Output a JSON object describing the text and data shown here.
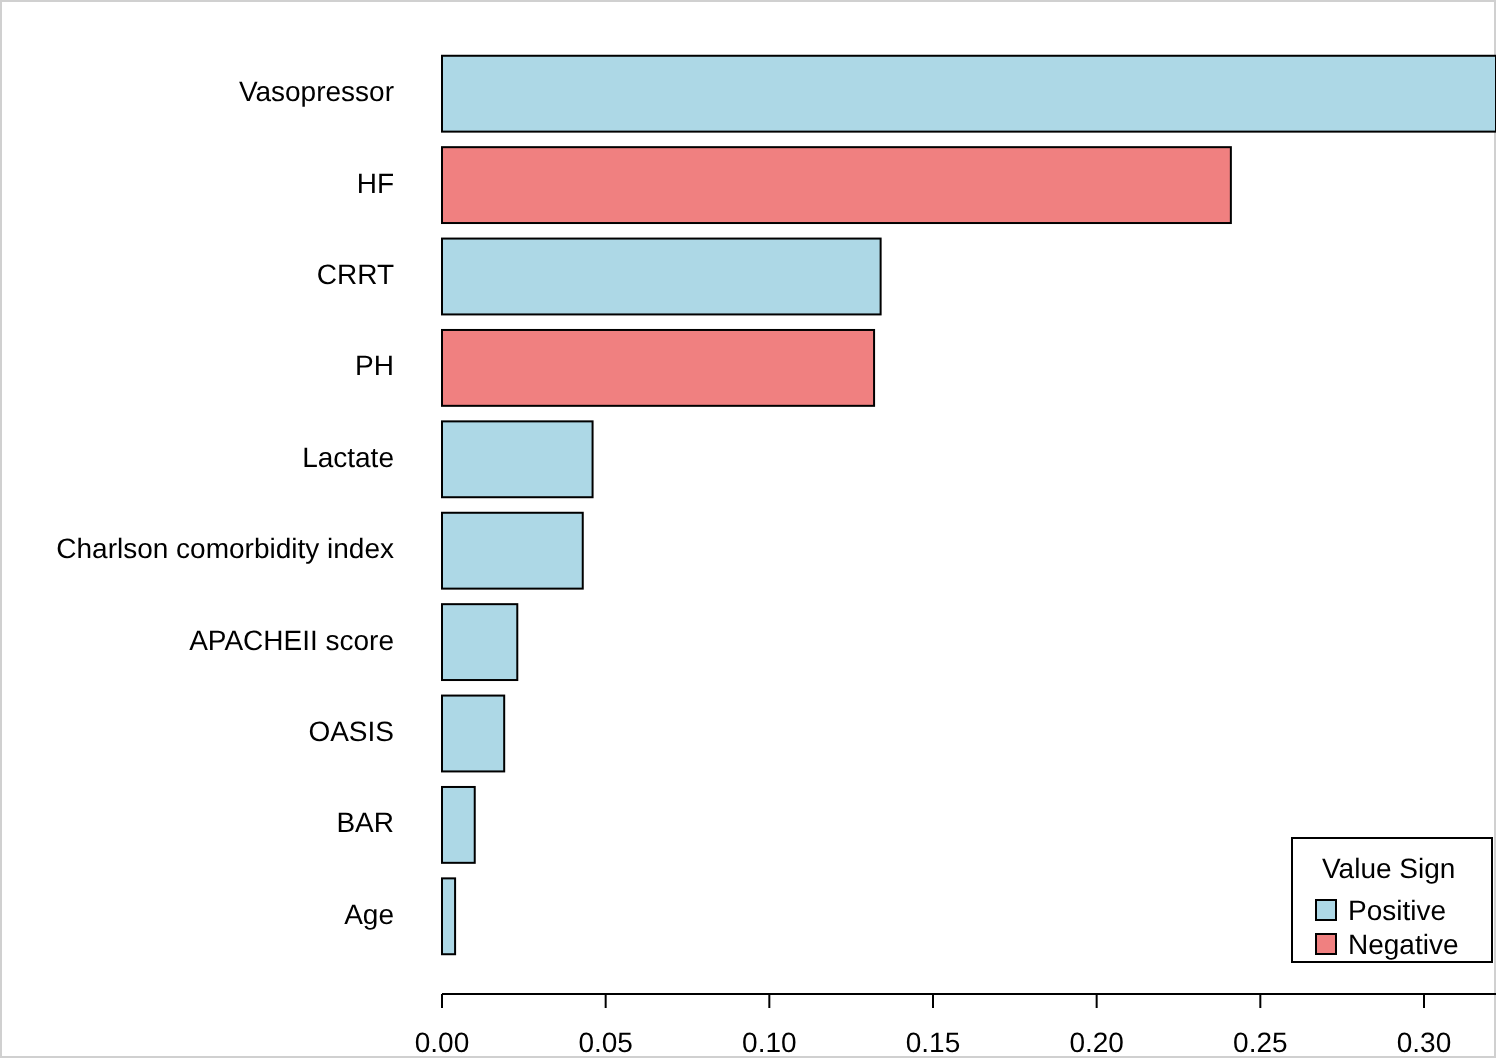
{
  "chart_data": {
    "type": "bar",
    "orientation": "horizontal",
    "categories": [
      "Vasopressor",
      "HF",
      "CRRT",
      "PH",
      "Lactate",
      "Charlson comorbidity index",
      "APACHEII score",
      "OASIS",
      "BAR",
      "Age"
    ],
    "series": [
      {
        "name": "Positive",
        "color": "#add8e6",
        "values": [
          0.322,
          null,
          0.134,
          null,
          0.046,
          0.043,
          0.023,
          0.019,
          0.01,
          0.004
        ]
      },
      {
        "name": "Negative",
        "color": "#f08080",
        "values": [
          null,
          0.241,
          null,
          0.132,
          null,
          null,
          null,
          null,
          null,
          null
        ]
      }
    ],
    "xlim": [
      0,
      0.322
    ],
    "xticks": [
      {
        "value": 0,
        "label": "0.00"
      },
      {
        "value": 0.05,
        "label": "0.05"
      },
      {
        "value": 0.1,
        "label": "0.10"
      },
      {
        "value": 0.15,
        "label": "0.15"
      },
      {
        "value": 0.2,
        "label": "0.20"
      },
      {
        "value": 0.25,
        "label": "0.25"
      },
      {
        "value": 0.3,
        "label": "0.30"
      }
    ],
    "legend": "bottom right",
    "legend_title": "Value Sign"
  }
}
